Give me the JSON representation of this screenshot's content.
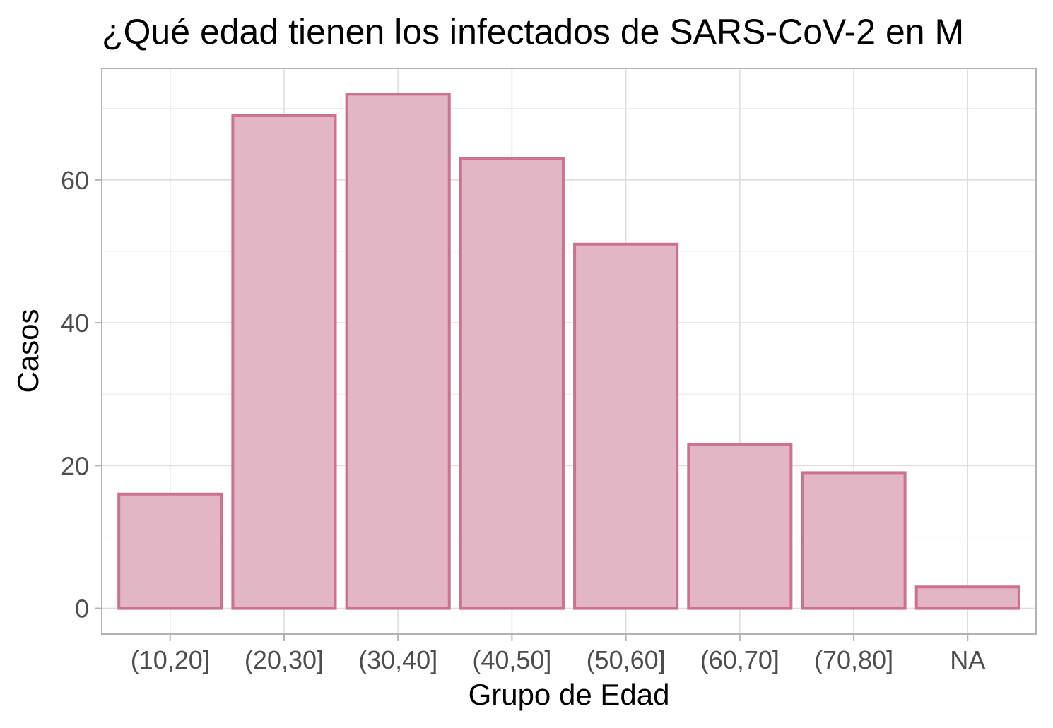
{
  "chart_data": {
    "type": "bar",
    "title": "¿Qué edad tienen los infectados de SARS-CoV-2 en M",
    "xlabel": "Grupo de Edad",
    "ylabel": "Casos",
    "categories": [
      "(10,20]",
      "(20,30]",
      "(30,40]",
      "(40,50]",
      "(50,60]",
      "(60,70]",
      "(70,80]",
      "NA"
    ],
    "values": [
      16,
      69,
      72,
      63,
      51,
      23,
      19,
      3
    ],
    "ylim": [
      -3.6,
      75.6
    ],
    "yticks": [
      0,
      20,
      40,
      60
    ],
    "ytick_labels": [
      "0",
      "20",
      "40",
      "60"
    ],
    "grid": true,
    "colors": {
      "bar_fill": "#e3b6c6",
      "bar_stroke": "#cc7192"
    }
  }
}
